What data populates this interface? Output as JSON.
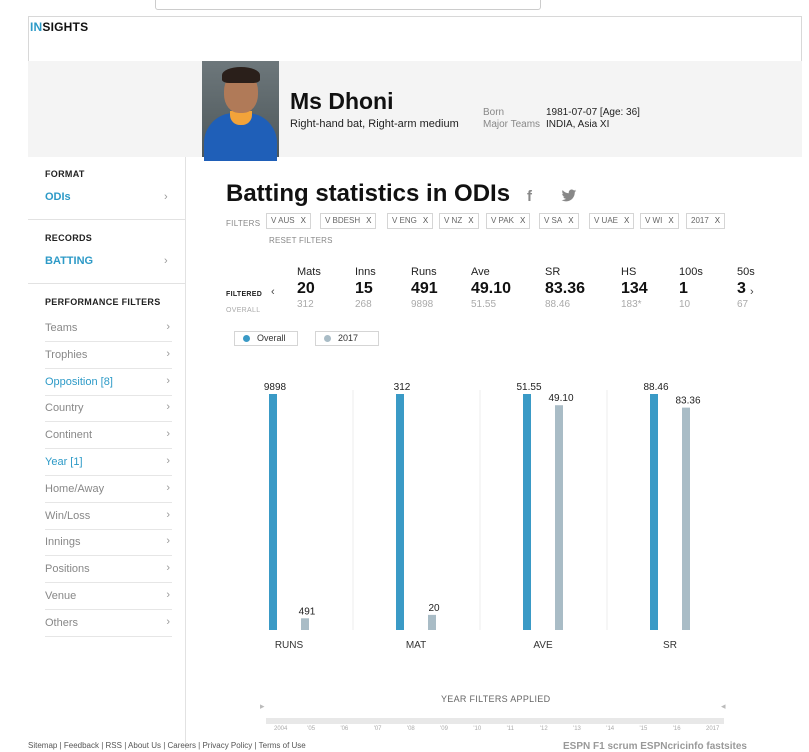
{
  "logo": {
    "accent": "IN",
    "rest": "SIGHTS"
  },
  "profile": {
    "name": "Ms Dhoni",
    "style": "Right-hand bat, Right-arm medium",
    "born_label": "Born",
    "born_value": "1981-07-07 [Age: 36]",
    "teams_label": "Major Teams",
    "teams_value": "INDIA, Asia XI"
  },
  "sidebar": {
    "format_head": "FORMAT",
    "format_value": "ODIs",
    "records_head": "RECORDS",
    "records_value": "BATTING",
    "perf_head": "PERFORMANCE FILTERS",
    "items": [
      {
        "label": "Teams",
        "active": false
      },
      {
        "label": "Trophies",
        "active": false
      },
      {
        "label": "Opposition [8]",
        "active": true
      },
      {
        "label": "Country",
        "active": false
      },
      {
        "label": "Continent",
        "active": false
      },
      {
        "label": "Year [1]",
        "active": true
      },
      {
        "label": "Home/Away",
        "active": false
      },
      {
        "label": "Win/Loss",
        "active": false
      },
      {
        "label": "Innings",
        "active": false
      },
      {
        "label": "Positions",
        "active": false
      },
      {
        "label": "Venue",
        "active": false
      },
      {
        "label": "Others",
        "active": false
      }
    ]
  },
  "main": {
    "title": "Batting statistics in ODIs",
    "filters_label": "FILTERS",
    "chips": [
      "V AUS",
      "V BDESH",
      "V ENG",
      "V NZ",
      "V PAK",
      "V SA",
      "V UAE",
      "V WI",
      "2017"
    ],
    "chip_close": "X",
    "reset": "RESET FILTERS"
  },
  "stats": {
    "filtered_label": "FILTERED",
    "overall_label": "OVERALL",
    "columns": [
      {
        "h": "Mats",
        "v": "20",
        "o": "312"
      },
      {
        "h": "Inns",
        "v": "15",
        "o": "268"
      },
      {
        "h": "Runs",
        "v": "491",
        "o": "9898"
      },
      {
        "h": "Ave",
        "v": "49.10",
        "o": "51.55"
      },
      {
        "h": "SR",
        "v": "83.36",
        "o": "88.46"
      },
      {
        "h": "HS",
        "v": "134",
        "o": "183*"
      },
      {
        "h": "100s",
        "v": "1",
        "o": "10"
      },
      {
        "h": "50s",
        "v": "3",
        "o": "67"
      }
    ]
  },
  "legend": {
    "overall": "Overall",
    "year": "2017"
  },
  "colors": {
    "accent": "#2d9ac7",
    "overall_bar": "#3a9ac6",
    "year_bar": "#a9bcc6"
  },
  "chart_data": {
    "type": "bar",
    "categories": [
      "RUNS",
      "MAT",
      "AVE",
      "SR"
    ],
    "series": [
      {
        "name": "Overall",
        "values": [
          9898,
          312,
          51.55,
          88.46
        ],
        "labels": [
          "9898",
          "312",
          "51.55",
          "88.46"
        ]
      },
      {
        "name": "2017",
        "values": [
          491,
          20,
          49.1,
          83.36
        ],
        "labels": [
          "491",
          "20",
          "49.10",
          "83.36"
        ]
      }
    ]
  },
  "timeline": {
    "title": "YEAR FILTERS APPLIED",
    "years": [
      "2004",
      "'05",
      "'06",
      "'07",
      "'08",
      "'09",
      "'10",
      "'11",
      "'12",
      "'13",
      "'14",
      "'15",
      "'16",
      "2017"
    ]
  },
  "footer": {
    "links": "Sitemap  |  Feedback  |  RSS  |  About Us  |  Careers  |  Privacy Policy  |  Terms of Use",
    "brands": "ESPN   F1   scrum   ESPNcricinfo   fastsites"
  }
}
